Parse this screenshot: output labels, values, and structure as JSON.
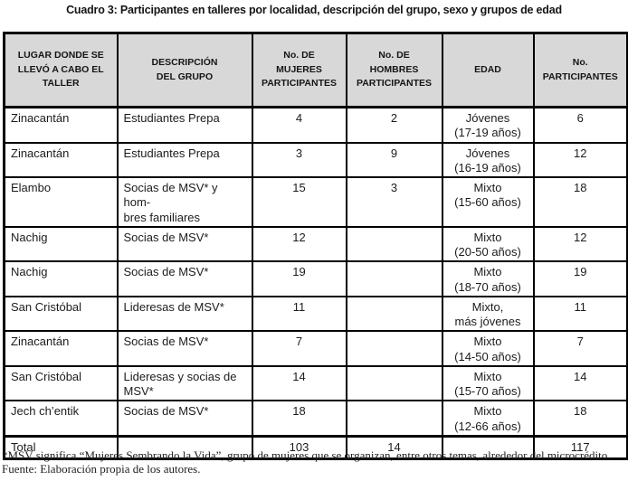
{
  "title": "Cuadro 3: Participantes en talleres por localidad, descripción del grupo, sexo y grupos de edad",
  "colors": {
    "header_bg": "#d8d8d8",
    "border": "#000000",
    "page_bg": "#ffffff"
  },
  "table": {
    "headers": [
      "LUGAR DONDE SE\nLLEVÓ A CABO EL\nTALLER",
      "DESCRIPCIÓN\nDEL GRUPO",
      "No. DE\nMUJERES\nPARTICIPANTES",
      "No. DE\nHOMBRES\nPARTICIPANTES",
      "EDAD",
      "No.\nPARTICIPANTES"
    ],
    "rows": [
      {
        "cells": [
          "Zinacantán",
          "Estudiantes Prepa",
          "4",
          "2",
          "Jóvenes\n(17-19 años)",
          "6"
        ]
      },
      {
        "cells": [
          "Zinacantán",
          "Estudiantes Prepa",
          "3",
          "9",
          "Jóvenes\n(16-19 años)",
          "12"
        ]
      },
      {
        "cells": [
          "Elambo",
          "Socias de MSV* y hom-\nbres familiares",
          "15",
          "3",
          "Mixto\n(15-60 años)",
          "18"
        ]
      },
      {
        "cells": [
          "Nachig",
          "Socias de MSV*",
          "12",
          "",
          "Mixto\n(20-50 años)",
          "12"
        ]
      },
      {
        "cells": [
          "Nachig",
          "Socias de MSV*",
          "19",
          "",
          "Mixto\n(18-70 años)",
          "19"
        ]
      },
      {
        "cells": [
          "San Cristóbal",
          "Lideresas de MSV*",
          "11",
          "",
          "Mixto,\nmás jóvenes",
          "11"
        ]
      },
      {
        "cells": [
          "Zinacantán",
          "Socias de MSV*",
          "7",
          "",
          "Mixto\n(14-50 años)",
          "7"
        ]
      },
      {
        "cells": [
          "San Cristóbal",
          "Lideresas y socias de\nMSV*",
          "14",
          "",
          "Mixto\n(15-70 años)",
          "14"
        ]
      },
      {
        "cells": [
          "Jech ch’entik",
          "Socias de MSV*",
          "18",
          "",
          "Mixto\n(12-66 años)",
          "18"
        ]
      }
    ],
    "total": {
      "cells": [
        "Total",
        "",
        "103",
        "14",
        "",
        "117"
      ]
    }
  },
  "footnotes": {
    "line1": "*MSV significa “Mujeres Sembrando la Vida”, grupo de mujeres que se organizan, entre otros temas, alrededor del microcrédito.",
    "line2": "Fuente: Elaboración propia de los autores."
  }
}
